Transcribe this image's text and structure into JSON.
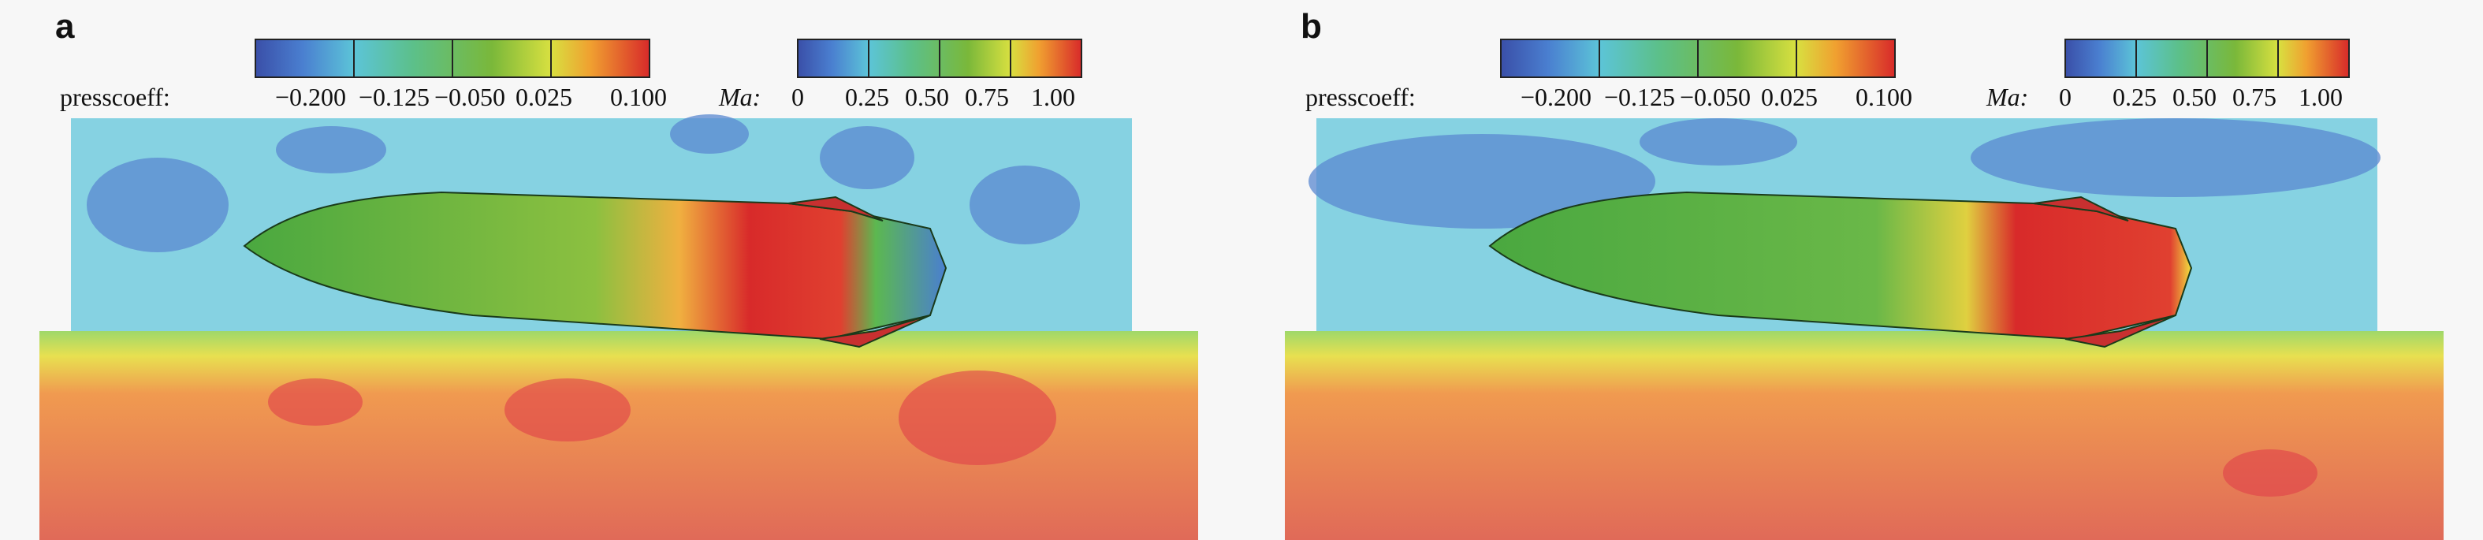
{
  "panels": [
    {
      "label": "a",
      "colorbars": [
        {
          "label": "presscoeff:",
          "ticks": [
            "−0.200",
            "−0.125",
            "−0.050",
            "0.025",
            "0.100"
          ]
        },
        {
          "label": "Ma:",
          "ticks": [
            "0",
            "0.25",
            "0.50",
            "0.75",
            "1.00"
          ]
        }
      ]
    },
    {
      "label": "b",
      "colorbars": [
        {
          "label": "presscoeff:",
          "ticks": [
            "−0.200",
            "−0.125",
            "−0.050",
            "0.025",
            "0.100"
          ]
        },
        {
          "label": "Ma:",
          "ticks": [
            "0",
            "0.25",
            "0.50",
            "0.75",
            "1.00"
          ]
        }
      ]
    }
  ]
}
